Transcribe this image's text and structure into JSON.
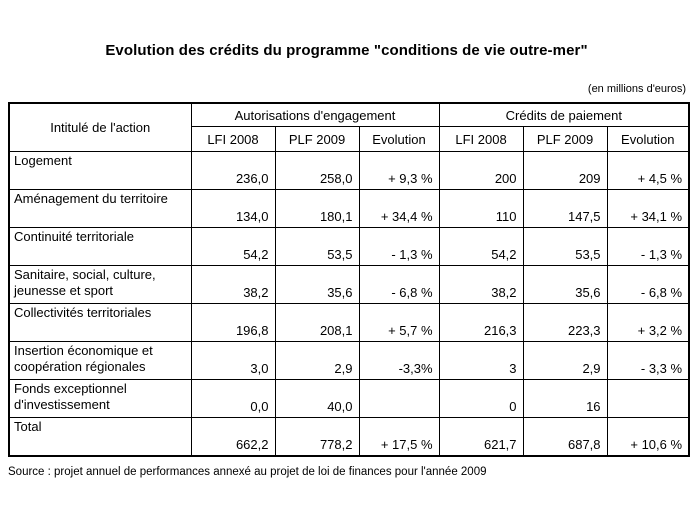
{
  "page": {
    "title": "Evolution des crédits du programme \"conditions de vie outre-mer\"",
    "unit_note": "(en millions d'euros)",
    "source": "Source : projet annuel de performances annexé au projet de loi de finances pour l'année 2009"
  },
  "table": {
    "corner_header": "Intitulé de l'action",
    "group_headers": [
      "Autorisations d'engagement",
      "Crédits de paiement"
    ],
    "sub_headers": [
      "LFI 2008",
      "PLF 2009",
      "Evolution",
      "LFI 2008",
      "PLF 2009",
      "Evolution"
    ],
    "rows": [
      {
        "label": "Logement",
        "values": [
          "236,0",
          "258,0",
          "+ 9,3 %",
          "200",
          "209",
          "+ 4,5 %"
        ]
      },
      {
        "label": "Aménagement du territoire",
        "values": [
          "134,0",
          "180,1",
          "+ 34,4 %",
          "110",
          "147,5",
          "+ 34,1 %"
        ]
      },
      {
        "label": "Continuité territoriale",
        "values": [
          "54,2",
          "53,5",
          "- 1,3 %",
          "54,2",
          "53,5",
          "- 1,3 %"
        ]
      },
      {
        "label": "Sanitaire, social, culture, jeunesse et sport",
        "values": [
          "38,2",
          "35,6",
          "- 6,8 %",
          "38,2",
          "35,6",
          "- 6,8 %"
        ]
      },
      {
        "label": "Collectivités territoriales",
        "values": [
          "196,8",
          "208,1",
          "+ 5,7 %",
          "216,3",
          "223,3",
          "+ 3,2 %"
        ]
      },
      {
        "label": "Insertion économique et coopération régionales",
        "values": [
          "3,0",
          "2,9",
          "-3,3%",
          "3",
          "2,9",
          "- 3,3 %"
        ]
      },
      {
        "label": "Fonds exceptionnel d'investissement",
        "values": [
          "0,0",
          "40,0",
          "",
          "0",
          "16",
          ""
        ]
      },
      {
        "label": "Total",
        "values": [
          "662,2",
          "778,2",
          "+ 17,5 %",
          "621,7",
          "687,8",
          "+ 10,6 %"
        ]
      }
    ]
  }
}
